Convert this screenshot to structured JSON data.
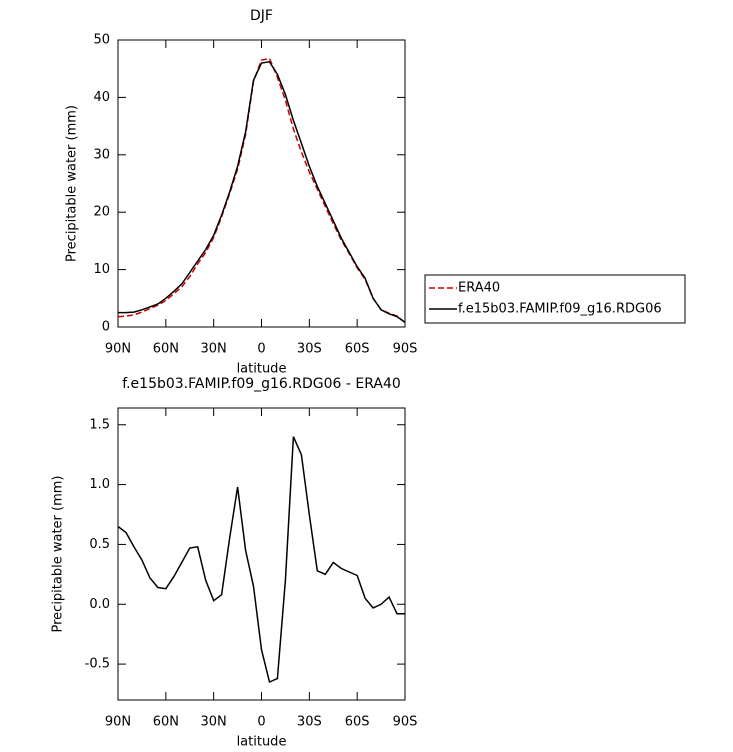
{
  "chart_data": [
    {
      "type": "line",
      "title": "DJF",
      "xlabel": "latitude",
      "ylabel": "Precipitable water (mm)",
      "x": [
        90,
        85,
        80,
        75,
        70,
        65,
        60,
        55,
        50,
        45,
        40,
        35,
        30,
        25,
        20,
        15,
        10,
        5,
        0,
        -5,
        -10,
        -15,
        -20,
        -25,
        -30,
        -35,
        -40,
        -45,
        -50,
        -55,
        -60,
        -65,
        -70,
        -75,
        -80,
        -85,
        -90
      ],
      "series": [
        {
          "name": "ERA40",
          "color": "#cc0000",
          "dash": true,
          "values": [
            1.8,
            1.9,
            2.1,
            2.6,
            3.2,
            3.8,
            4.6,
            5.8,
            7.0,
            8.8,
            11.0,
            13.0,
            15.6,
            19.2,
            23.2,
            27.5,
            33.5,
            42.8,
            46.5,
            46.8,
            43.5,
            39.5,
            34.5,
            30.5,
            27,
            24,
            21,
            18,
            15.2,
            12.8,
            10.3,
            8.3,
            5,
            3,
            2.4,
            1.9,
            0.8
          ]
        },
        {
          "name": "f.e15b03.FAMIP.f09_g16.RDG06",
          "color": "#000000",
          "dash": false,
          "values": [
            2.5,
            2.5,
            2.6,
            3.0,
            3.5,
            4.0,
            5.0,
            6.2,
            7.5,
            9.5,
            11.5,
            13.5,
            16,
            19.5,
            23.5,
            28,
            34,
            43,
            46,
            46.2,
            44,
            40.5,
            36,
            32,
            28,
            24.5,
            21.5,
            18.5,
            15.5,
            13,
            10.5,
            8.5,
            5,
            3,
            2.3,
            1.8,
            0.8
          ]
        }
      ],
      "xlim": [
        90,
        -90
      ],
      "xticks": [
        {
          "value": 90,
          "label": "90N"
        },
        {
          "value": 60,
          "label": "60N"
        },
        {
          "value": 30,
          "label": "30N"
        },
        0,
        {
          "value": -30,
          "label": "30S"
        },
        {
          "value": -60,
          "label": "60S"
        },
        {
          "value": -90,
          "label": "90S"
        }
      ],
      "ylim": [
        0,
        50
      ],
      "yticks": [
        0,
        10,
        20,
        30,
        40,
        50
      ],
      "legend": "right"
    },
    {
      "type": "line",
      "title": "f.e15b03.FAMIP.f09_g16.RDG06 - ERA40",
      "xlabel": "latitude",
      "ylabel": "Precipitable water (mm)",
      "x": [
        90,
        85,
        80,
        75,
        70,
        65,
        60,
        55,
        50,
        45,
        40,
        35,
        30,
        25,
        20,
        15,
        10,
        5,
        0,
        -5,
        -10,
        -15,
        -20,
        -25,
        -30,
        -35,
        -40,
        -45,
        -50,
        -55,
        -60,
        -65,
        -70,
        -75,
        -80,
        -85,
        -90
      ],
      "series": [
        {
          "color": "#000000",
          "dash": false,
          "values": [
            0.65,
            0.6,
            0.48,
            0.37,
            0.22,
            0.14,
            0.13,
            0.23,
            0.35,
            0.47,
            0.48,
            0.2,
            0.03,
            0.08,
            0.55,
            0.98,
            0.45,
            0.15,
            -0.38,
            -0.65,
            -0.62,
            0.2,
            1.4,
            1.25,
            0.75,
            0.28,
            0.25,
            0.35,
            0.3,
            0.27,
            0.24,
            0.05,
            -0.03,
            0.0,
            0.06,
            -0.08,
            -0.08
          ]
        }
      ],
      "xlim": [
        90,
        -90
      ],
      "xticks": [
        {
          "value": 90,
          "label": "90N"
        },
        {
          "value": 60,
          "label": "60N"
        },
        {
          "value": 30,
          "label": "30N"
        },
        0,
        {
          "value": -30,
          "label": "30S"
        },
        {
          "value": -60,
          "label": "60S"
        },
        {
          "value": -90,
          "label": "90S"
        }
      ],
      "ylim": [
        -0.8,
        1.64
      ],
      "yticks": [
        -0.5,
        {
          "value": 0,
          "label": "0.0"
        },
        0.5,
        {
          "value": 1,
          "label": "1.0"
        },
        1.5
      ]
    }
  ]
}
